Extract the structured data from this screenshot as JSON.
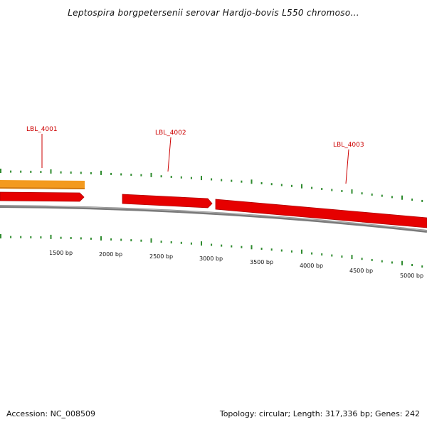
{
  "title": "Leptospira borgpetersenii serovar Hardjo-bovis L550 chromoso...",
  "footer": {
    "accession": "Accession: NC_008509",
    "summary": "Topology: circular; Length: 317,336 bp; Genes: 242"
  },
  "colors": {
    "backbone": "#808080",
    "forward_gene": "#e60000",
    "orange_feature": "#f39a1e",
    "tick": "#2e8b2e",
    "label": "#cc0000"
  },
  "genes": [
    {
      "label": "LBL_4001",
      "strand": "+"
    },
    {
      "label": "LBL_4002",
      "strand": "+"
    },
    {
      "label": "LBL_4003",
      "strand": "+"
    }
  ],
  "scale_labels": [
    "1500 bp",
    "2000 bp",
    "2500 bp",
    "3000 bp",
    "3500 bp",
    "4000 bp",
    "4500 bp",
    "5000 bp"
  ]
}
